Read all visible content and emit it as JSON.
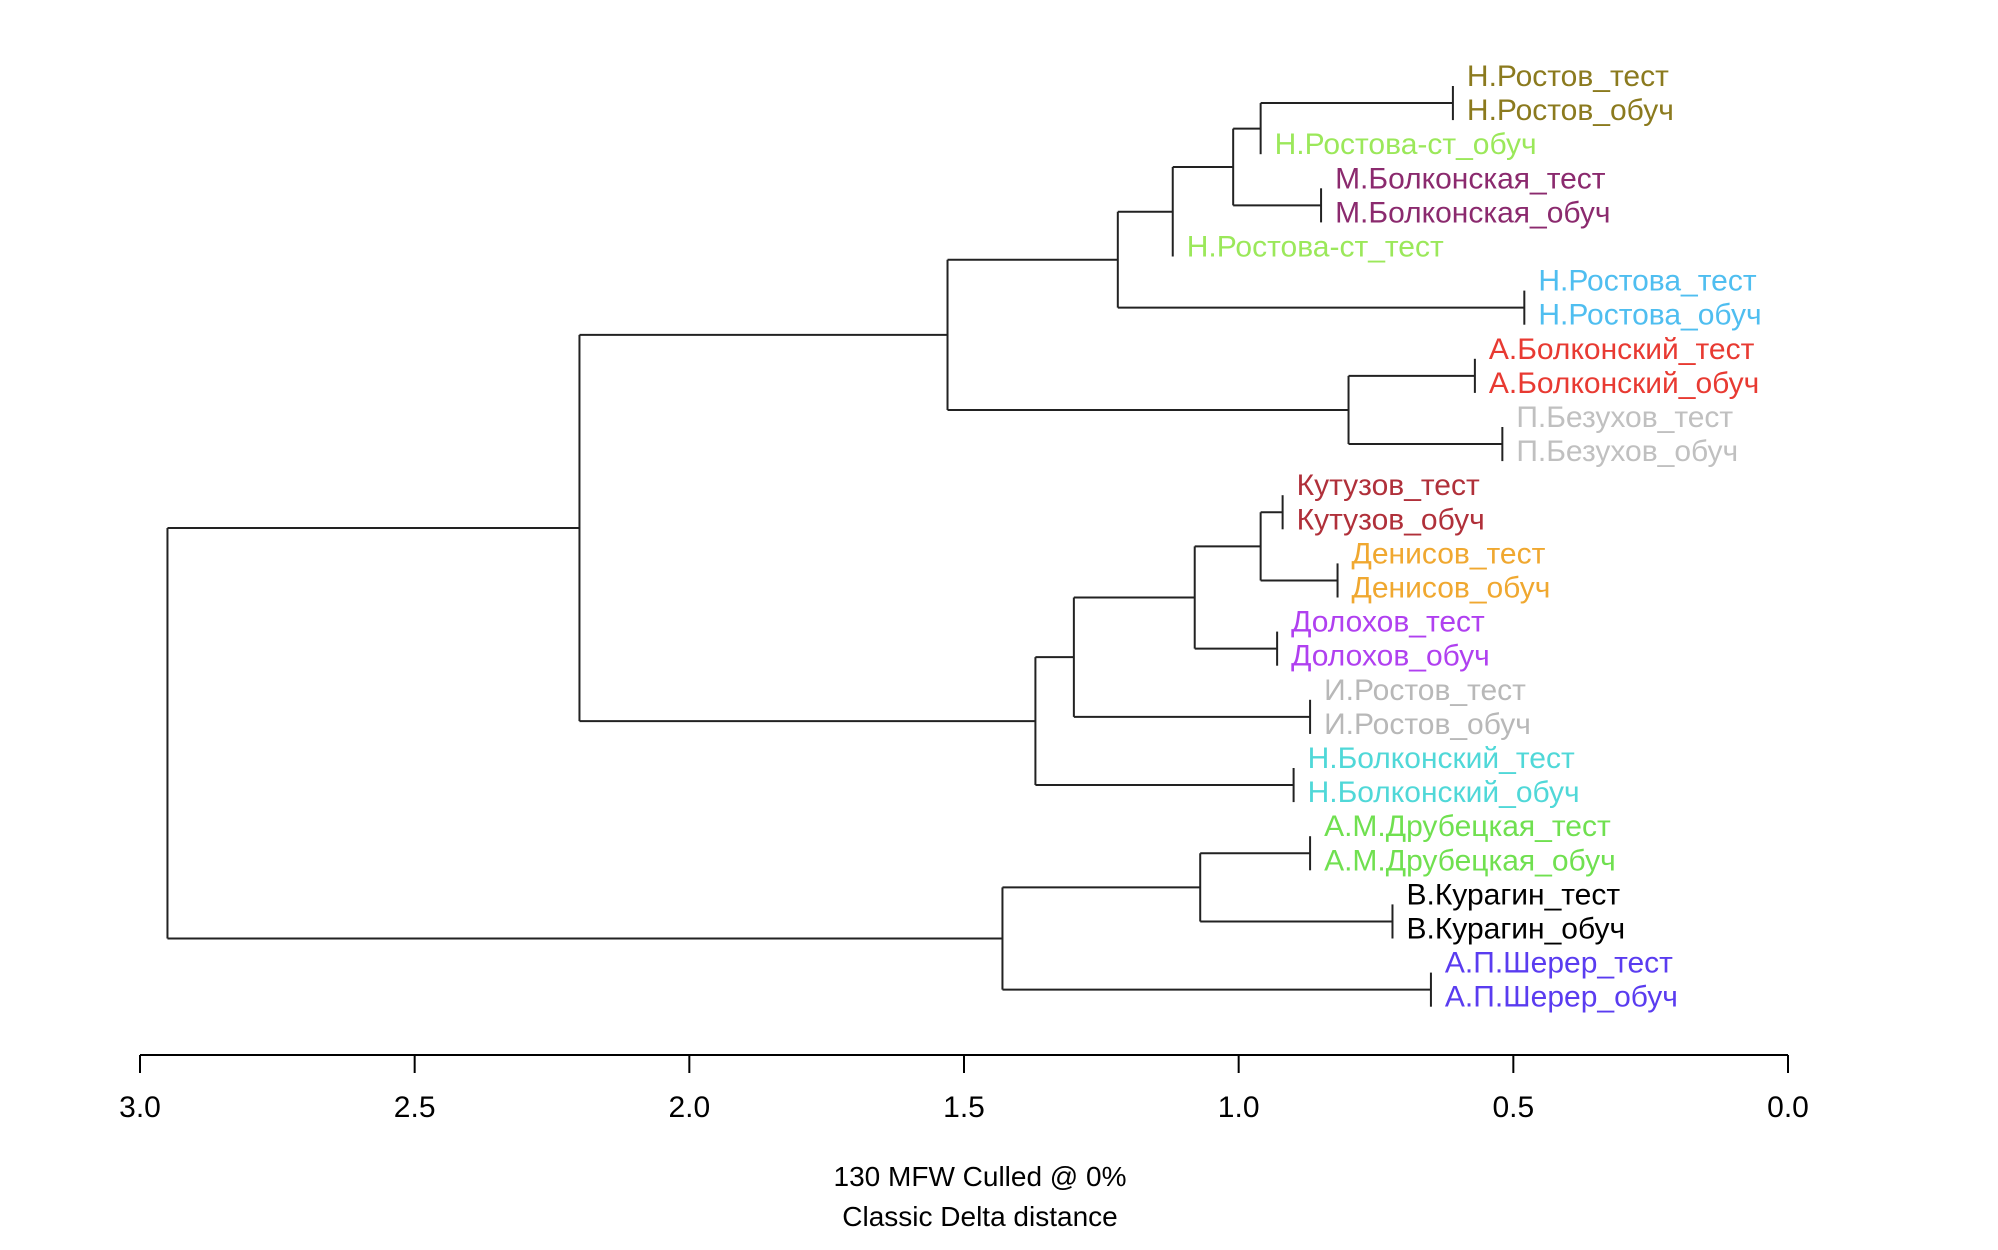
{
  "chart_data": {
    "type": "dendrogram",
    "xlim": [
      3.0,
      0.0
    ],
    "ticks": [
      3.0,
      2.5,
      2.0,
      1.5,
      1.0,
      0.5,
      0.0
    ],
    "tick_labels": [
      "3.0",
      "2.5",
      "2.0",
      "1.5",
      "1.0",
      "0.5",
      "0.0"
    ],
    "caption_line1": "130 MFW  Culled @ 0%",
    "caption_line2": "Classic Delta distance",
    "leaves": [
      {
        "label": "Н.Ростов_тест",
        "color": "#8b7a1e"
      },
      {
        "label": "Н.Ростов_обуч",
        "color": "#8b7a1e"
      },
      {
        "label": "Н.Ростова-ст_обуч",
        "color": "#9be85a"
      },
      {
        "label": "М.Болконская_тест",
        "color": "#8b2a6e"
      },
      {
        "label": "М.Болконская_обуч",
        "color": "#8b2a6e"
      },
      {
        "label": "Н.Ростова-ст_тест",
        "color": "#9be85a"
      },
      {
        "label": "Н.Ростова_тест",
        "color": "#4fbef0"
      },
      {
        "label": "Н.Ростова_обуч",
        "color": "#4fbef0"
      },
      {
        "label": "А.Болконский_тест",
        "color": "#e83a32"
      },
      {
        "label": "А.Болконский_обуч",
        "color": "#e83a32"
      },
      {
        "label": "П.Безухов_тест",
        "color": "#c0c0c0"
      },
      {
        "label": "П.Безухов_обуч",
        "color": "#c0c0c0"
      },
      {
        "label": "Кутузов_тест",
        "color": "#b0303a"
      },
      {
        "label": "Кутузов_обуч",
        "color": "#b0303a"
      },
      {
        "label": "Денисов_тест",
        "color": "#f0a830"
      },
      {
        "label": "Денисов_обуч",
        "color": "#f0a830"
      },
      {
        "label": "Долохов_тест",
        "color": "#b040f0"
      },
      {
        "label": "Долохов_обуч",
        "color": "#b040f0"
      },
      {
        "label": "И.Ростов_тест",
        "color": "#b8b8b8"
      },
      {
        "label": "И.Ростов_обуч",
        "color": "#b8b8b8"
      },
      {
        "label": "Н.Болконский_тест",
        "color": "#50d8d8"
      },
      {
        "label": "Н.Болконский_обуч",
        "color": "#50d8d8"
      },
      {
        "label": "А.М.Друбецкая_тест",
        "color": "#70e050"
      },
      {
        "label": "А.М.Друбецкая_обуч",
        "color": "#70e050"
      },
      {
        "label": "В.Курагин_тест",
        "color": "#000000"
      },
      {
        "label": "В.Курагин_обуч",
        "color": "#000000"
      },
      {
        "label": "А.П.Шерер_тест",
        "color": "#5a3cf0"
      },
      {
        "label": "А.П.Шерер_обуч",
        "color": "#5a3cf0"
      }
    ],
    "merges": [
      {
        "id": "n1",
        "height": 0.61,
        "children": [
          0,
          1
        ]
      },
      {
        "id": "n2",
        "height": 0.96,
        "children": [
          "n1",
          2
        ]
      },
      {
        "id": "n3",
        "height": 0.85,
        "children": [
          3,
          4
        ]
      },
      {
        "id": "n4",
        "height": 1.01,
        "children": [
          "n2",
          "n3"
        ]
      },
      {
        "id": "n5",
        "height": 1.12,
        "children": [
          "n4",
          5
        ]
      },
      {
        "id": "n6",
        "height": 0.48,
        "children": [
          6,
          7
        ]
      },
      {
        "id": "n7",
        "height": 1.22,
        "children": [
          "n5",
          "n6"
        ]
      },
      {
        "id": "n8",
        "height": 0.57,
        "children": [
          8,
          9
        ]
      },
      {
        "id": "n9",
        "height": 0.52,
        "children": [
          10,
          11
        ]
      },
      {
        "id": "n10",
        "height": 0.8,
        "children": [
          "n8",
          "n9"
        ]
      },
      {
        "id": "n11",
        "height": 1.53,
        "children": [
          "n7",
          "n10"
        ]
      },
      {
        "id": "n12",
        "height": 0.92,
        "children": [
          12,
          13
        ]
      },
      {
        "id": "n13",
        "height": 0.82,
        "children": [
          14,
          15
        ]
      },
      {
        "id": "n14",
        "height": 0.96,
        "children": [
          "n12",
          "n13"
        ]
      },
      {
        "id": "n15",
        "height": 0.93,
        "children": [
          16,
          17
        ]
      },
      {
        "id": "n16",
        "height": 1.08,
        "children": [
          "n14",
          "n15"
        ]
      },
      {
        "id": "n17",
        "height": 0.87,
        "children": [
          18,
          19
        ]
      },
      {
        "id": "n18",
        "height": 1.3,
        "children": [
          "n16",
          "n17"
        ]
      },
      {
        "id": "n19",
        "height": 0.9,
        "children": [
          20,
          21
        ]
      },
      {
        "id": "n20",
        "height": 1.37,
        "children": [
          "n18",
          "n19"
        ]
      },
      {
        "id": "n21",
        "height": 2.2,
        "children": [
          "n11",
          "n20"
        ]
      },
      {
        "id": "n22",
        "height": 0.87,
        "children": [
          22,
          23
        ]
      },
      {
        "id": "n23",
        "height": 0.72,
        "children": [
          24,
          25
        ]
      },
      {
        "id": "n24",
        "height": 1.07,
        "children": [
          "n22",
          "n23"
        ]
      },
      {
        "id": "n25",
        "height": 0.65,
        "children": [
          26,
          27
        ]
      },
      {
        "id": "n26",
        "height": 1.43,
        "children": [
          "n24",
          "n25"
        ]
      },
      {
        "id": "n27",
        "height": 2.95,
        "children": [
          "n21",
          "n26"
        ]
      }
    ]
  }
}
